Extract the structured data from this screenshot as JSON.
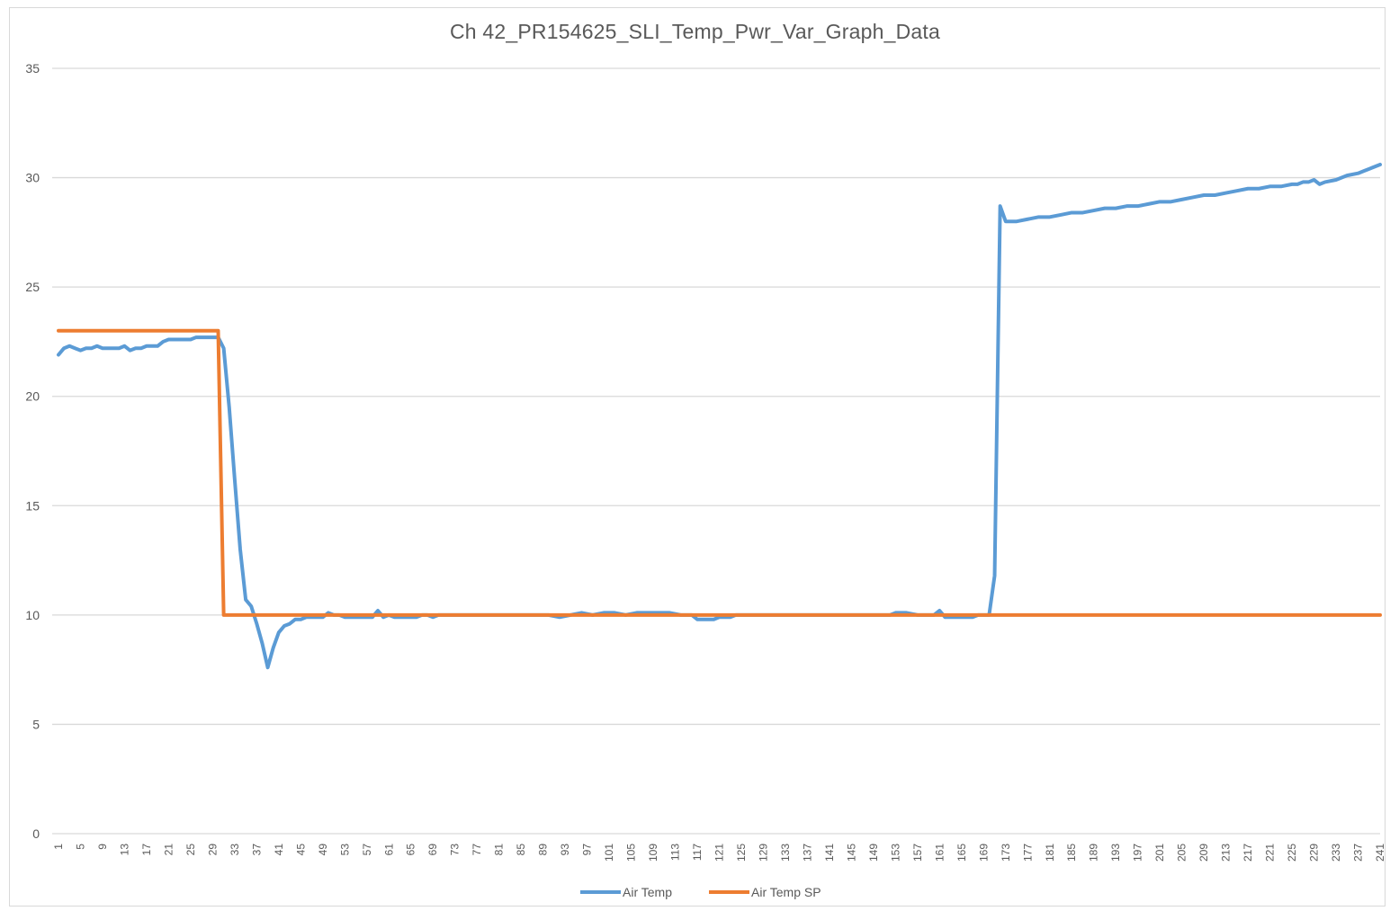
{
  "chart_data": {
    "type": "line",
    "title": "Ch 42_PR154625_SLI_Temp_Pwr_Var_Graph_Data",
    "xlabel": "",
    "ylabel": "",
    "ylim": [
      0,
      35
    ],
    "yticks": [
      0,
      5,
      10,
      15,
      20,
      25,
      30,
      35
    ],
    "xlim": [
      1,
      241
    ],
    "xtick_start": 1,
    "xtick_step": 4,
    "grid": "horizontal",
    "legend_position": "bottom",
    "series": [
      {
        "name": "Air Temp",
        "color": "#5b9bd5",
        "points": [
          [
            1,
            21.9
          ],
          [
            2,
            22.2
          ],
          [
            3,
            22.3
          ],
          [
            4,
            22.2
          ],
          [
            5,
            22.1
          ],
          [
            6,
            22.2
          ],
          [
            7,
            22.2
          ],
          [
            8,
            22.3
          ],
          [
            9,
            22.2
          ],
          [
            10,
            22.2
          ],
          [
            11,
            22.2
          ],
          [
            12,
            22.2
          ],
          [
            13,
            22.3
          ],
          [
            14,
            22.1
          ],
          [
            15,
            22.2
          ],
          [
            16,
            22.2
          ],
          [
            17,
            22.3
          ],
          [
            18,
            22.3
          ],
          [
            19,
            22.3
          ],
          [
            20,
            22.5
          ],
          [
            21,
            22.6
          ],
          [
            22,
            22.6
          ],
          [
            23,
            22.6
          ],
          [
            24,
            22.6
          ],
          [
            25,
            22.6
          ],
          [
            26,
            22.7
          ],
          [
            27,
            22.7
          ],
          [
            28,
            22.7
          ],
          [
            29,
            22.7
          ],
          [
            30,
            22.7
          ],
          [
            31,
            22.2
          ],
          [
            32,
            19.5
          ],
          [
            33,
            16.2
          ],
          [
            34,
            13.0
          ],
          [
            35,
            10.7
          ],
          [
            36,
            10.4
          ],
          [
            37,
            9.6
          ],
          [
            38,
            8.7
          ],
          [
            39,
            7.6
          ],
          [
            40,
            8.5
          ],
          [
            41,
            9.2
          ],
          [
            42,
            9.5
          ],
          [
            43,
            9.6
          ],
          [
            44,
            9.8
          ],
          [
            45,
            9.8
          ],
          [
            46,
            9.9
          ],
          [
            47,
            9.9
          ],
          [
            48,
            9.9
          ],
          [
            49,
            9.9
          ],
          [
            50,
            10.1
          ],
          [
            51,
            10.0
          ],
          [
            52,
            10.0
          ],
          [
            53,
            9.9
          ],
          [
            54,
            9.9
          ],
          [
            55,
            9.9
          ],
          [
            56,
            9.9
          ],
          [
            57,
            9.9
          ],
          [
            58,
            9.9
          ],
          [
            59,
            10.2
          ],
          [
            60,
            9.9
          ],
          [
            61,
            10.0
          ],
          [
            62,
            9.9
          ],
          [
            63,
            9.9
          ],
          [
            64,
            9.9
          ],
          [
            65,
            9.9
          ],
          [
            66,
            9.9
          ],
          [
            67,
            10.0
          ],
          [
            68,
            10.0
          ],
          [
            69,
            9.9
          ],
          [
            70,
            10.0
          ],
          [
            90,
            10.0
          ],
          [
            92,
            9.9
          ],
          [
            94,
            10.0
          ],
          [
            96,
            10.1
          ],
          [
            98,
            10.0
          ],
          [
            100,
            10.1
          ],
          [
            102,
            10.1
          ],
          [
            104,
            10.0
          ],
          [
            106,
            10.1
          ],
          [
            108,
            10.1
          ],
          [
            110,
            10.1
          ],
          [
            112,
            10.1
          ],
          [
            114,
            10.0
          ],
          [
            116,
            10.0
          ],
          [
            117,
            9.8
          ],
          [
            118,
            9.8
          ],
          [
            119,
            9.8
          ],
          [
            120,
            9.8
          ],
          [
            121,
            9.9
          ],
          [
            122,
            9.9
          ],
          [
            123,
            9.9
          ],
          [
            124,
            10.0
          ],
          [
            152,
            10.0
          ],
          [
            153,
            10.1
          ],
          [
            155,
            10.1
          ],
          [
            157,
            10.0
          ],
          [
            160,
            10.0
          ],
          [
            161,
            10.2
          ],
          [
            162,
            9.9
          ],
          [
            164,
            9.9
          ],
          [
            166,
            9.9
          ],
          [
            167,
            9.9
          ],
          [
            168,
            10.0
          ],
          [
            169,
            10.0
          ],
          [
            170,
            10.0
          ],
          [
            171,
            11.8
          ],
          [
            172,
            28.7
          ],
          [
            173,
            28.0
          ],
          [
            175,
            28.0
          ],
          [
            177,
            28.1
          ],
          [
            179,
            28.2
          ],
          [
            181,
            28.2
          ],
          [
            183,
            28.3
          ],
          [
            185,
            28.4
          ],
          [
            187,
            28.4
          ],
          [
            189,
            28.5
          ],
          [
            191,
            28.6
          ],
          [
            193,
            28.6
          ],
          [
            195,
            28.7
          ],
          [
            197,
            28.7
          ],
          [
            199,
            28.8
          ],
          [
            201,
            28.9
          ],
          [
            203,
            28.9
          ],
          [
            205,
            29.0
          ],
          [
            207,
            29.1
          ],
          [
            209,
            29.2
          ],
          [
            211,
            29.2
          ],
          [
            213,
            29.3
          ],
          [
            215,
            29.4
          ],
          [
            217,
            29.5
          ],
          [
            219,
            29.5
          ],
          [
            221,
            29.6
          ],
          [
            223,
            29.6
          ],
          [
            225,
            29.7
          ],
          [
            226,
            29.7
          ],
          [
            227,
            29.8
          ],
          [
            228,
            29.8
          ],
          [
            229,
            29.9
          ],
          [
            230,
            29.7
          ],
          [
            231,
            29.8
          ],
          [
            233,
            29.9
          ],
          [
            235,
            30.1
          ],
          [
            237,
            30.2
          ],
          [
            238,
            30.3
          ],
          [
            239,
            30.4
          ],
          [
            241,
            30.6
          ]
        ]
      },
      {
        "name": "Air Temp SP",
        "color": "#ed7d31",
        "points": [
          [
            1,
            23.0
          ],
          [
            30,
            23.0
          ],
          [
            31,
            10.0
          ],
          [
            241,
            10.0
          ]
        ]
      }
    ]
  }
}
